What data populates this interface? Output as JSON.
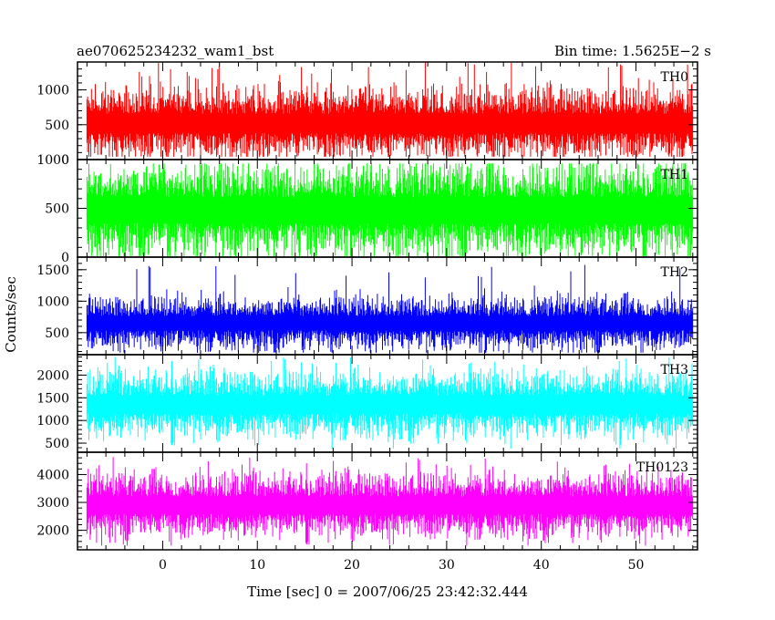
{
  "header": {
    "title": "ae070625234232_wam1_bst",
    "bin_time": "Bin time: 1.5625E−2 s"
  },
  "axes": {
    "xlabel": "Time [sec] 0 = 2007/06/25 23:42:32.444",
    "ylabel": "Counts/sec"
  },
  "chart_data": {
    "type": "line",
    "title": "ae070625234232_wam1_bst",
    "xlabel": "Time [sec] 0 = 2007/06/25 23:42:32.444",
    "ylabel": "Counts/sec",
    "xlim": [
      -9,
      56.5
    ],
    "x_range_data": [
      -8,
      56
    ],
    "x_ticks": [
      0,
      10,
      20,
      30,
      40,
      50
    ],
    "bin_time_s": 0.015625,
    "panels": [
      {
        "name": "TH0",
        "color": "#ff0000",
        "ylim": [
          0,
          1400
        ],
        "y_ticks": [
          0,
          500,
          1000
        ],
        "mean": 520,
        "spread": 230,
        "min_level": 40,
        "max_level": 1400
      },
      {
        "name": "TH1",
        "color": "#00ff00",
        "ylim": [
          0,
          1000
        ],
        "y_ticks": [
          0,
          500,
          1000
        ],
        "mean": 480,
        "spread": 220,
        "min_level": 10,
        "max_level": 960
      },
      {
        "name": "TH2",
        "color": "#0000ff",
        "ylim": [
          150,
          1700
        ],
        "y_ticks": [
          500,
          1000,
          1500
        ],
        "mean": 650,
        "spread": 190,
        "min_level": 180,
        "max_level": 1600
      },
      {
        "name": "TH3",
        "color": "#00ffff",
        "ylim": [
          300,
          2450
        ],
        "y_ticks": [
          500,
          1000,
          1500,
          2000
        ],
        "mean": 1350,
        "spread": 330,
        "min_level": 380,
        "max_level": 2450
      },
      {
        "name": "TH0123",
        "color": "#ff00ff",
        "ylim": [
          1300,
          4800
        ],
        "y_ticks": [
          2000,
          3000,
          4000
        ],
        "mean": 2900,
        "spread": 520,
        "min_level": 1450,
        "max_level": 4700
      }
    ]
  }
}
